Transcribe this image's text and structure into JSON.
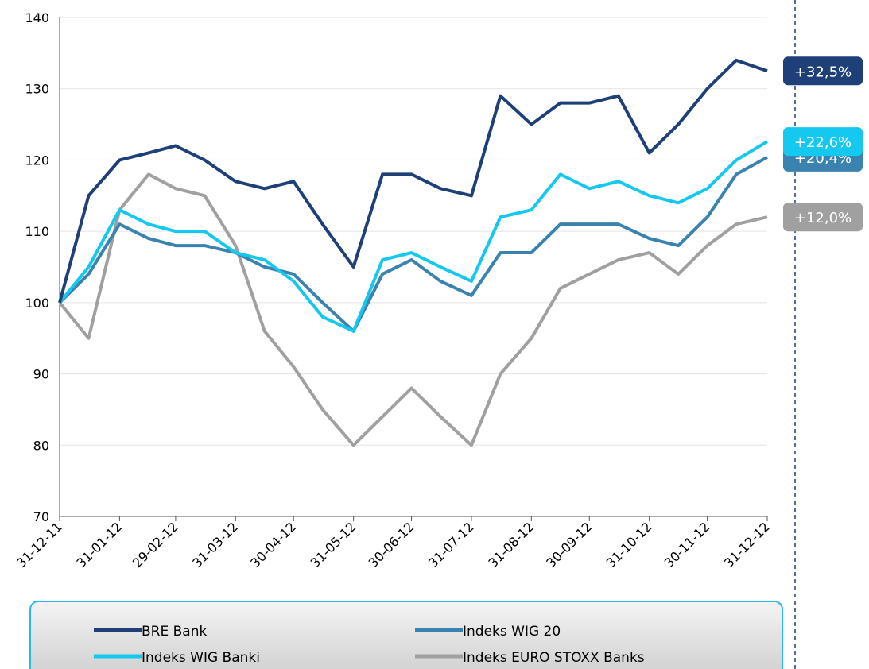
{
  "chart_data": {
    "type": "line",
    "x": [
      "31-12-11",
      "15-01-12",
      "31-01-12",
      "15-02-12",
      "29-02-12",
      "15-03-12",
      "31-03-12",
      "15-04-12",
      "30-04-12",
      "15-05-12",
      "31-05-12",
      "15-06-12",
      "30-06-12",
      "15-07-12",
      "31-07-12",
      "15-08-12",
      "31-08-12",
      "15-09-12",
      "30-09-12",
      "15-10-12",
      "31-10-12",
      "15-11-12",
      "30-11-12",
      "15-12-12",
      "31-12-12"
    ],
    "xticks": [
      "31-12-11",
      "31-01-12",
      "29-02-12",
      "31-03-12",
      "30-04-12",
      "31-05-12",
      "30-06-12",
      "31-07-12",
      "31-08-12",
      "30-09-12",
      "31-10-12",
      "30-11-12",
      "31-12-12"
    ],
    "ylim": [
      70,
      140
    ],
    "yticks": [
      70,
      80,
      90,
      100,
      110,
      120,
      130,
      140
    ],
    "grid": true,
    "series": [
      {
        "name": "Indeks EURO STOXX Banks",
        "color": "#a0a0a0",
        "end_label": "+12,0%",
        "values": [
          100,
          95,
          113,
          118,
          116,
          115,
          108,
          96,
          91,
          85,
          80,
          84,
          88,
          84,
          80,
          90,
          95,
          102,
          104,
          106,
          107,
          104,
          108,
          111,
          112
        ]
      },
      {
        "name": "Indeks WIG 20",
        "color": "#3a82b0",
        "end_label": "+20,4%",
        "values": [
          100,
          104,
          111,
          109,
          108,
          108,
          107,
          105,
          104,
          100,
          96,
          104,
          106,
          103,
          101,
          107,
          107,
          111,
          111,
          111,
          109,
          108,
          112,
          118,
          120.4
        ]
      },
      {
        "name": "Indeks WIG Banki",
        "color": "#14c8f0",
        "end_label": "+22,6%",
        "values": [
          100,
          105,
          113,
          111,
          110,
          110,
          107,
          106,
          103,
          98,
          96,
          106,
          107,
          105,
          103,
          112,
          113,
          118,
          116,
          117,
          115,
          114,
          116,
          120,
          122.6
        ]
      },
      {
        "name": "BRE Bank",
        "color": "#1f3f78",
        "end_label": "+32,5%",
        "values": [
          100,
          115,
          120,
          121,
          122,
          120,
          117,
          116,
          117,
          111,
          105,
          118,
          118,
          116,
          115,
          129,
          125,
          128,
          128,
          129,
          121,
          125,
          130,
          134,
          132.5
        ]
      }
    ]
  }
}
